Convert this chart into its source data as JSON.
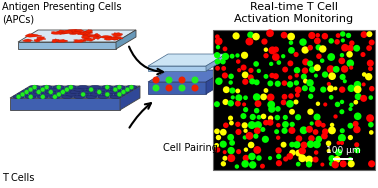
{
  "fig_width": 3.78,
  "fig_height": 1.88,
  "dpi": 100,
  "bg_color": "#ffffff",
  "left_panel": {
    "apc_label": "Antigen Presenting Cells\n(APCs)",
    "tcell_label": "T Cells",
    "cell_pairing_label": "Cell Pairing",
    "apc_label_fontsize": 7.0,
    "tcell_label_fontsize": 7.0,
    "cell_pairing_fontsize": 7.0
  },
  "right_panel": {
    "title": "Real-time T Cell\nActivation Monitoring",
    "title_fontsize": 8.0,
    "scalebar_text": "100 μm",
    "scalebar_fontsize": 6.5,
    "bg_color": "#000000",
    "dot_colors_red": "#ff0000",
    "dot_colors_green": "#00ff00",
    "dot_colors_yellow": "#ffff00"
  },
  "random_seed": 42,
  "n_red": 110,
  "n_green": 120,
  "n_yellow": 55
}
